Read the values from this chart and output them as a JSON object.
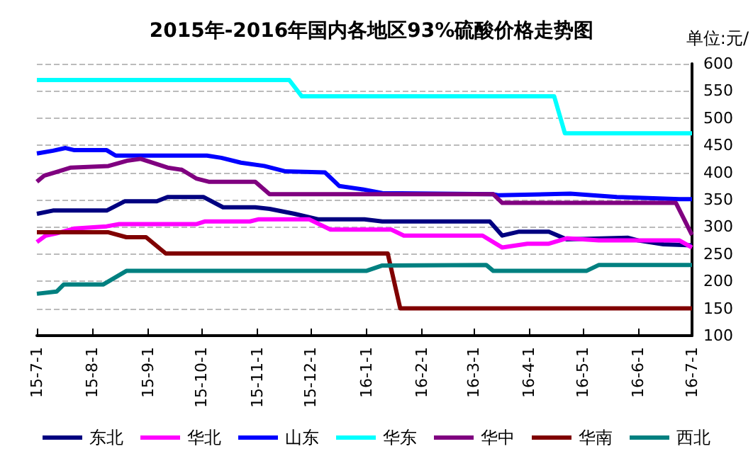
{
  "chart_data": {
    "type": "line",
    "title": "2015年-2016年国内各地区93%硫酸价格走势图",
    "ylabel": "单位:元/",
    "xlim": [
      "2015-07-01",
      "2016-07-01"
    ],
    "xticks": [
      {
        "value": "2015-07-01",
        "label": "15-7-1"
      },
      {
        "value": "2015-08-01",
        "label": "15-8-1"
      },
      {
        "value": "2015-09-01",
        "label": "15-9-1"
      },
      {
        "value": "2015-10-01",
        "label": "15-10-1"
      },
      {
        "value": "2015-11-01",
        "label": "15-11-1"
      },
      {
        "value": "2015-12-01",
        "label": "15-12-1"
      },
      {
        "value": "2016-01-01",
        "label": "16-1-1"
      },
      {
        "value": "2016-02-01",
        "label": "16-2-1"
      },
      {
        "value": "2016-03-01",
        "label": "16-3-1"
      },
      {
        "value": "2016-04-01",
        "label": "16-4-1"
      },
      {
        "value": "2016-05-01",
        "label": "16-5-1"
      },
      {
        "value": "2016-06-01",
        "label": "16-6-1"
      },
      {
        "value": "2016-07-01",
        "label": "16-7-1"
      }
    ],
    "ylim": [
      100,
      600
    ],
    "yticks": [
      100,
      150,
      200,
      250,
      300,
      350,
      400,
      450,
      500,
      550,
      600
    ],
    "grid": "y",
    "legend": "bottom",
    "marker": "none",
    "line_style": "solid",
    "series": [
      {
        "name": "东北",
        "color": "#000080",
        "x": [
          "2015-07-01",
          "2015-07-10",
          "2015-08-09",
          "2015-08-19",
          "2015-09-06",
          "2015-09-12",
          "2015-10-02",
          "2015-10-13",
          "2015-10-31",
          "2015-11-08",
          "2015-11-22",
          "2015-12-05",
          "2015-12-31",
          "2016-01-10",
          "2016-03-10",
          "2016-03-17",
          "2016-03-26",
          "2016-04-12",
          "2016-04-22",
          "2016-05-26",
          "2016-06-01",
          "2016-06-15",
          "2016-07-01"
        ],
        "values": [
          324,
          330,
          330,
          347,
          347,
          355,
          355,
          336,
          336,
          333,
          324,
          314,
          314,
          310,
          310,
          284,
          291,
          291,
          277,
          280,
          275,
          268,
          266
        ]
      },
      {
        "name": "华北",
        "color": "#ff00ff",
        "x": [
          "2015-07-01",
          "2015-07-06",
          "2015-07-12",
          "2015-07-22",
          "2015-08-09",
          "2015-08-16",
          "2015-09-28",
          "2015-10-03",
          "2015-10-28",
          "2015-11-02",
          "2015-11-30",
          "2015-12-12",
          "2016-01-15",
          "2016-01-22",
          "2016-03-06",
          "2016-03-17",
          "2016-03-31",
          "2016-04-12",
          "2016-04-22",
          "2016-05-10",
          "2016-06-24",
          "2016-07-01"
        ],
        "values": [
          272,
          284,
          288,
          297,
          301,
          305,
          305,
          310,
          310,
          314,
          314,
          295,
          295,
          284,
          284,
          262,
          269,
          269,
          279,
          275,
          275,
          262
        ]
      },
      {
        "name": "山东",
        "color": "#0000ff",
        "x": [
          "2015-07-01",
          "2015-07-10",
          "2015-07-17",
          "2015-07-22",
          "2015-08-09",
          "2015-08-14",
          "2015-10-04",
          "2015-10-12",
          "2015-10-23",
          "2015-11-05",
          "2015-11-17",
          "2015-12-09",
          "2015-12-17",
          "2015-12-30",
          "2016-01-10",
          "2016-03-12",
          "2016-03-15",
          "2016-04-24",
          "2016-05-20",
          "2016-06-24",
          "2016-07-01"
        ],
        "values": [
          435,
          440,
          445,
          441,
          441,
          431,
          431,
          427,
          418,
          412,
          402,
          400,
          375,
          369,
          362,
          360,
          358,
          361,
          355,
          351,
          351
        ]
      },
      {
        "name": "华东",
        "color": "#00ffff",
        "x": [
          "2015-07-01",
          "2015-11-19",
          "2015-11-26",
          "2016-04-15",
          "2016-04-21",
          "2016-07-01"
        ],
        "values": [
          570,
          570,
          540,
          540,
          472,
          472
        ]
      },
      {
        "name": "华中",
        "color": "#800080",
        "x": [
          "2015-07-01",
          "2015-07-05",
          "2015-07-12",
          "2015-07-20",
          "2015-08-10",
          "2015-08-21",
          "2015-08-28",
          "2015-09-12",
          "2015-09-20",
          "2015-09-28",
          "2015-10-05",
          "2015-10-31",
          "2015-11-08",
          "2016-03-12",
          "2016-03-17",
          "2016-06-22",
          "2016-07-01"
        ],
        "values": [
          383,
          394,
          401,
          409,
          412,
          422,
          425,
          409,
          405,
          389,
          383,
          383,
          360,
          360,
          344,
          344,
          285
        ]
      },
      {
        "name": "华南",
        "color": "#800000",
        "x": [
          "2015-07-01",
          "2015-08-10",
          "2015-08-20",
          "2015-08-31",
          "2015-09-11",
          "2016-01-13",
          "2016-01-20",
          "2016-07-01"
        ],
        "values": [
          290,
          290,
          281,
          281,
          251,
          251,
          150,
          150
        ]
      },
      {
        "name": "西北",
        "color": "#008080",
        "x": [
          "2015-07-01",
          "2015-07-12",
          "2015-07-16",
          "2015-08-07",
          "2015-08-20",
          "2016-01-01",
          "2016-01-10",
          "2016-03-08",
          "2016-03-12",
          "2016-05-03",
          "2016-05-10",
          "2016-07-01"
        ],
        "values": [
          177,
          181,
          194,
          194,
          219,
          219,
          229,
          230,
          219,
          219,
          230,
          230
        ]
      }
    ]
  }
}
